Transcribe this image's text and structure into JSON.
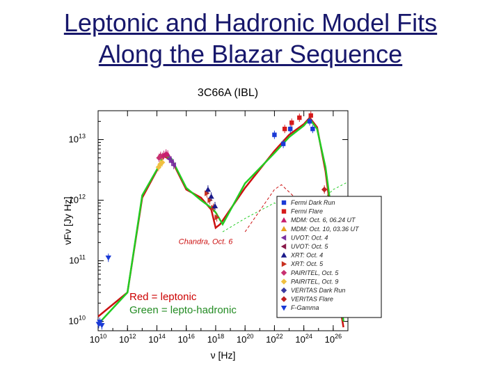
{
  "slide": {
    "title_line1": "Leptonic and Hadronic Model Fits",
    "title_line2": "Along the Blazar Sequence",
    "caption": "3C66A (IBL)"
  },
  "note": {
    "red": "Red = leptonic",
    "green": "Green = lepto-hadronic"
  },
  "chart_data": {
    "type": "scatter",
    "xscale": "log",
    "yscale": "log",
    "xlim": [
      10000000000.0,
      1e+27
    ],
    "ylim": [
      7000000000.0,
      30000000000000.0
    ],
    "xlabel": "ν [Hz]",
    "ylabel": "νFν [Jy Hz]",
    "xtick_exponents": [
      10,
      12,
      14,
      16,
      18,
      20,
      22,
      24,
      26
    ],
    "ytick_exponents": [
      10,
      11,
      12,
      13
    ],
    "annotation": "Chandra, Oct. 6",
    "colors": {
      "leptonic": "#cc1111",
      "hadronic": "#22cc22"
    },
    "legend": [
      {
        "label": "Fermi Dark Run",
        "marker": "square",
        "color": "#1a3ad6"
      },
      {
        "label": "Fermi Flare",
        "marker": "square",
        "color": "#d61a1a"
      },
      {
        "label": "MDM: Oct. 6, 06.24 UT",
        "marker": "triangle",
        "color": "#c81e6e"
      },
      {
        "label": "MDM: Oct. 10, 03.36 UT",
        "marker": "triangle",
        "color": "#e8a020"
      },
      {
        "label": "UVOT: Oct. 4",
        "marker": "tri-left",
        "color": "#7a30a0"
      },
      {
        "label": "UVOT: Oct. 5",
        "marker": "tri-left",
        "color": "#8a1a4a"
      },
      {
        "label": "XRT: Oct. 4",
        "marker": "triangle",
        "color": "#1a1a8a"
      },
      {
        "label": "XRT: Oct. 5",
        "marker": "tri-right",
        "color": "#c83020"
      },
      {
        "label": "PAIRITEL, Oct. 5",
        "marker": "diamond",
        "color": "#c83070"
      },
      {
        "label": "PAIRITEL, Oct. 9",
        "marker": "diamond",
        "color": "#f0c040"
      },
      {
        "label": "VERITAS Dark Run",
        "marker": "diamond",
        "color": "#3a3aa0"
      },
      {
        "label": "VERITAS Flare",
        "marker": "diamond",
        "color": "#c02020"
      },
      {
        "label": "F-Gamma",
        "marker": "tri-down",
        "color": "#1a3ad6"
      }
    ],
    "series": [
      {
        "name": "F-Gamma",
        "marker": "tri-down",
        "color": "#1a3ad6",
        "points": [
          [
            11000000000.0,
            9000000000.0
          ],
          [
            13000000000.0,
            9800000000.0
          ],
          [
            18000000000.0,
            8600000000.0
          ],
          [
            50000000000.0,
            112000000000.0
          ]
        ]
      },
      {
        "name": "PAIRITEL, Oct. 5",
        "marker": "diamond",
        "color": "#c83070",
        "points": [
          [
            140000000000000.0,
            5000000000000.0
          ],
          [
            180000000000000.0,
            5400000000000.0
          ],
          [
            240000000000000.0,
            5200000000000.0
          ]
        ]
      },
      {
        "name": "PAIRITEL, Oct. 9",
        "marker": "diamond",
        "color": "#f0c040",
        "points": [
          [
            130000000000000.0,
            3500000000000.0
          ],
          [
            170000000000000.0,
            3900000000000.0
          ],
          [
            230000000000000.0,
            4200000000000.0
          ]
        ]
      },
      {
        "name": "MDM: Oct. 6, 06.24 UT",
        "marker": "triangle",
        "color": "#c81e6e",
        "points": [
          [
            300000000000000.0,
            5600000000000.0
          ],
          [
            420000000000000.0,
            5900000000000.0
          ],
          [
            550000000000000.0,
            5700000000000.0
          ]
        ]
      },
      {
        "name": "UVOT: Oct. 4",
        "marker": "tri-left",
        "color": "#7a30a0",
        "points": [
          [
            700000000000000.0,
            4800000000000.0
          ],
          [
            1000000000000000.0,
            4300000000000.0
          ],
          [
            1400000000000000.0,
            3800000000000.0
          ]
        ]
      },
      {
        "name": "XRT: Oct. 5",
        "marker": "tri-right",
        "color": "#c83020",
        "points": [
          [
            2.5e+17,
            1300000000000.0
          ],
          [
            4e+17,
            1000000000000.0
          ],
          [
            7e+17,
            750000000000.0
          ],
          [
            1.2e+18,
            520000000000.0
          ]
        ]
      },
      {
        "name": "XRT: Oct. 4",
        "marker": "triangle",
        "color": "#1a1a8a",
        "points": [
          [
            3e+17,
            1500000000000.0
          ],
          [
            5e+17,
            1150000000000.0
          ],
          [
            9e+17,
            800000000000.0
          ]
        ]
      },
      {
        "name": "Fermi Dark Run",
        "marker": "square",
        "color": "#1a3ad6",
        "points": [
          [
            1e+22,
            12000000000000.0
          ],
          [
            4e+22,
            8500000000000.0
          ],
          [
            1.2e+23,
            15000000000000.0
          ],
          [
            2.5e+24,
            20000000000000.0
          ],
          [
            4e+24,
            15000000000000.0
          ]
        ]
      },
      {
        "name": "Fermi Flare",
        "marker": "square",
        "color": "#d61a1a",
        "points": [
          [
            5e+22,
            15000000000000.0
          ],
          [
            1.5e+23,
            19000000000000.0
          ],
          [
            5e+23,
            23000000000000.0
          ],
          [
            3e+24,
            25000000000000.0
          ]
        ]
      },
      {
        "name": "VERITAS Flare",
        "marker": "diamond",
        "color": "#c02020",
        "points": [
          [
            2.5e+25,
            1500000000000.0
          ],
          [
            4e+25,
            1000000000000.0
          ],
          [
            6e+25,
            600000000000.0
          ]
        ]
      }
    ]
  }
}
